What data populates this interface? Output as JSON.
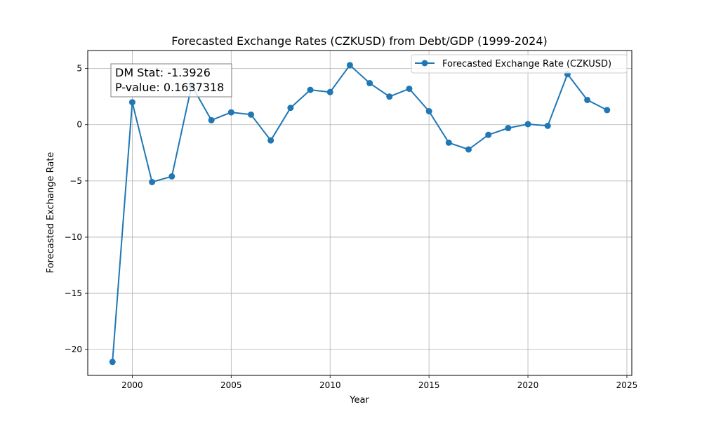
{
  "chart_data": {
    "type": "line",
    "title": "Forecasted Exchange Rates (CZKUSD) from Debt/GDP (1999-2024)",
    "xlabel": "Year",
    "ylabel": "Forecasted Exchange Rate",
    "xlim": [
      1997.75,
      2025.25
    ],
    "ylim": [
      -22.3,
      6.6
    ],
    "xticks": [
      2000,
      2005,
      2010,
      2015,
      2020,
      2025
    ],
    "yticks": [
      -20,
      -15,
      -10,
      -5,
      0,
      5
    ],
    "xtick_labels": [
      "2000",
      "2005",
      "2010",
      "2015",
      "2020",
      "2025"
    ],
    "ytick_labels": [
      "−20",
      "−15",
      "−10",
      "−5",
      "0",
      "5"
    ],
    "grid": true,
    "legend_position": "top-right",
    "color": "#1f77b4",
    "series": [
      {
        "name": "Forecasted Exchange Rate (CZKUSD)",
        "x": [
          1999,
          2000,
          2001,
          2002,
          2003,
          2004,
          2005,
          2006,
          2007,
          2008,
          2009,
          2010,
          2011,
          2012,
          2013,
          2014,
          2015,
          2016,
          2017,
          2018,
          2019,
          2020,
          2021,
          2022,
          2023,
          2024
        ],
        "y": [
          -21.1,
          2.0,
          -5.1,
          -4.6,
          3.5,
          0.4,
          1.1,
          0.9,
          -1.4,
          1.5,
          3.1,
          2.9,
          5.3,
          3.7,
          2.5,
          3.2,
          1.2,
          -1.6,
          -2.2,
          -0.9,
          -0.3,
          0.05,
          -0.1,
          4.5,
          2.2,
          1.3
        ]
      }
    ],
    "annotation": {
      "line1": "DM Stat: -1.3926",
      "line2": "P-value: 0.1637318"
    }
  }
}
